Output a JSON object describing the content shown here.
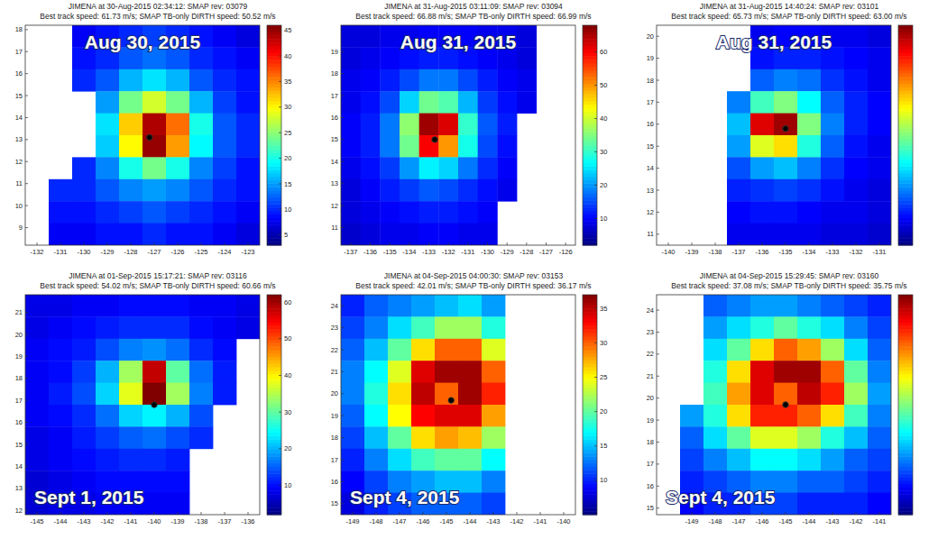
{
  "chart_data": [
    {
      "type": "heatmap",
      "color": "jet",
      "title": "JIMENA at 30-Aug-2015 02:34:12: SMAP rev: 03079",
      "subtitle": "Best track speed: 61.73 m/s; SMAP TB-only DIRTH speed: 50.52 m/s",
      "annotation": "Aug 30, 2015",
      "xlim": [
        -132.5,
        -122.5
      ],
      "xticks": [
        -132,
        -131,
        -130,
        -129,
        -128,
        -127,
        -126,
        -125,
        -124,
        -123
      ],
      "ylim": [
        8.2,
        18.2
      ],
      "yticks": [
        9,
        10,
        11,
        12,
        13,
        14,
        15,
        16,
        17,
        18
      ],
      "x_edges": [
        -132.5,
        -131.5,
        -130.5,
        -129.5,
        -128.5,
        -127.5,
        -126.5,
        -125.5,
        -124.5,
        -123.5,
        -122.5
      ],
      "y_edges": [
        18.2,
        17.2,
        16.2,
        15.2,
        14.2,
        13.2,
        12.2,
        11.2,
        10.2,
        9.2,
        8.2
      ],
      "cells": [
        [
          null,
          null,
          8,
          9,
          10,
          11,
          10,
          9,
          8,
          7
        ],
        [
          null,
          null,
          9,
          10,
          12,
          13,
          12,
          10,
          9,
          8
        ],
        [
          null,
          null,
          10,
          12,
          16,
          18,
          16,
          12,
          10,
          9
        ],
        [
          null,
          null,
          null,
          15,
          24,
          28,
          24,
          16,
          11,
          9
        ],
        [
          null,
          null,
          null,
          18,
          32,
          44,
          36,
          20,
          12,
          10
        ],
        [
          null,
          null,
          null,
          17,
          30,
          45,
          34,
          19,
          12,
          10
        ],
        [
          null,
          null,
          10,
          14,
          20,
          24,
          20,
          14,
          11,
          9
        ],
        [
          null,
          10,
          10,
          12,
          14,
          15,
          14,
          12,
          10,
          9
        ],
        [
          null,
          9,
          9,
          10,
          11,
          12,
          11,
          10,
          9,
          8
        ],
        [
          null,
          8,
          8,
          9,
          9,
          10,
          9,
          9,
          8,
          7
        ]
      ],
      "colorbar_range": [
        3,
        46
      ],
      "colorbar_ticks": [
        5,
        10,
        15,
        20,
        25,
        30,
        35,
        40,
        45
      ],
      "track_x": -127.2,
      "track_y": 13.1
    },
    {
      "type": "heatmap",
      "color": "jet",
      "title": "JIMENA at 31-Aug-2015 03:11:09: SMAP rev: 03094",
      "subtitle": "Best track speed: 66.88 m/s; SMAP TB-only DIRTH speed: 66.99 m/s",
      "annotation": "Aug 31, 2015",
      "xlim": [
        -137.5,
        -125.5
      ],
      "xticks": [
        -137,
        -136,
        -135,
        -134,
        -133,
        -132,
        -131,
        -130,
        -129,
        -128,
        -127,
        -126
      ],
      "ylim": [
        10.2,
        20.2
      ],
      "yticks": [
        11,
        12,
        13,
        14,
        15,
        16,
        17,
        18,
        19
      ],
      "x_edges": [
        -137.5,
        -136.5,
        -135.5,
        -134.5,
        -133.5,
        -132.5,
        -131.5,
        -130.5,
        -129.5,
        -128.5,
        -127.5,
        -126.5,
        -125.5
      ],
      "y_edges": [
        20.2,
        19.2,
        18.2,
        17.2,
        16.2,
        15.2,
        14.2,
        13.2,
        12.2,
        11.2,
        10.2
      ],
      "cells": [
        [
          8,
          8,
          9,
          9,
          10,
          10,
          10,
          9,
          9,
          8,
          null,
          null
        ],
        [
          8,
          9,
          10,
          11,
          12,
          12,
          11,
          10,
          9,
          8,
          null,
          null
        ],
        [
          9,
          10,
          12,
          15,
          18,
          18,
          15,
          12,
          10,
          9,
          null,
          null
        ],
        [
          9,
          11,
          15,
          24,
          34,
          32,
          22,
          14,
          11,
          9,
          null,
          null
        ],
        [
          10,
          12,
          18,
          36,
          66,
          62,
          30,
          16,
          12,
          null,
          null,
          null
        ],
        [
          10,
          12,
          18,
          34,
          60,
          50,
          28,
          15,
          11,
          null,
          null,
          null
        ],
        [
          9,
          11,
          14,
          20,
          26,
          24,
          18,
          13,
          10,
          null,
          null,
          null
        ],
        [
          8,
          10,
          12,
          14,
          16,
          15,
          13,
          11,
          9,
          null,
          null,
          null
        ],
        [
          8,
          9,
          10,
          11,
          12,
          12,
          11,
          10,
          null,
          null,
          null,
          null
        ],
        [
          7,
          8,
          9,
          9,
          10,
          10,
          9,
          9,
          null,
          null,
          null,
          null
        ]
      ],
      "colorbar_range": [
        2,
        68
      ],
      "colorbar_ticks": [
        10,
        20,
        30,
        40,
        50,
        60
      ],
      "track_x": -132.7,
      "track_y": 15.0
    },
    {
      "type": "heatmap",
      "color": "jet",
      "title": "JIMENA at 31-Aug-2015 14:40:24: SMAP rev: 03101",
      "subtitle": "Best track speed: 65.73 m/s; SMAP TB-only DIRTH speed: 63.00 m/s",
      "annotation": "Aug 31, 2015",
      "xlim": [
        -140.5,
        -130.5
      ],
      "xticks": [
        -140,
        -139,
        -138,
        -137,
        -136,
        -135,
        -134,
        -133,
        -132,
        -131
      ],
      "ylim": [
        10.5,
        20.5
      ],
      "yticks": [
        11,
        12,
        13,
        14,
        15,
        16,
        17,
        18,
        19,
        20
      ],
      "x_edges": [
        -140.5,
        -139.5,
        -138.5,
        -137.5,
        -136.5,
        -135.5,
        -134.5,
        -133.5,
        -132.5,
        -131.5,
        -130.5
      ],
      "y_edges": [
        20.5,
        19.5,
        18.5,
        17.5,
        16.5,
        15.5,
        14.5,
        13.5,
        12.5,
        11.5,
        10.5
      ],
      "cells": [
        [
          null,
          null,
          null,
          null,
          9,
          10,
          10,
          9,
          9,
          8
        ],
        [
          null,
          null,
          null,
          null,
          11,
          12,
          12,
          11,
          10,
          9
        ],
        [
          null,
          null,
          null,
          null,
          16,
          18,
          17,
          13,
          11,
          9
        ],
        [
          null,
          null,
          null,
          18,
          30,
          34,
          26,
          16,
          12,
          10
        ],
        [
          null,
          null,
          null,
          22,
          60,
          64,
          34,
          18,
          12,
          10
        ],
        [
          null,
          null,
          null,
          20,
          40,
          44,
          28,
          16,
          11,
          9
        ],
        [
          null,
          null,
          null,
          15,
          20,
          22,
          18,
          13,
          10,
          9
        ],
        [
          null,
          null,
          null,
          12,
          13,
          14,
          13,
          11,
          9,
          8
        ],
        [
          null,
          null,
          null,
          10,
          11,
          11,
          10,
          9,
          9,
          8
        ],
        [
          null,
          null,
          null,
          9,
          9,
          9,
          9,
          8,
          8,
          7
        ]
      ],
      "colorbar_range": [
        2,
        66
      ],
      "track_x": -135.0,
      "track_y": 15.8
    },
    {
      "type": "heatmap",
      "color": "jet",
      "title": "JIMENA at 01-Sep-2015 15:17:21: SMAP rev: 03116",
      "subtitle": "Best track speed: 54.02 m/s; SMAP TB-only DIRTH speed: 60.66 m/s",
      "annotation": "Sept 1, 2015",
      "xlim": [
        -145.5,
        -135.5
      ],
      "xticks": [
        -145,
        -144,
        -143,
        -142,
        -141,
        -140,
        -139,
        -138,
        -137,
        -136
      ],
      "ylim": [
        11.8,
        21.8
      ],
      "yticks": [
        12,
        13,
        14,
        15,
        16,
        17,
        18,
        19,
        20,
        21
      ],
      "x_edges": [
        -145.5,
        -144.5,
        -143.5,
        -142.5,
        -141.5,
        -140.5,
        -139.5,
        -138.5,
        -137.5,
        -136.5,
        -135.5
      ],
      "y_edges": [
        21.8,
        20.8,
        19.8,
        18.8,
        17.8,
        16.8,
        15.8,
        14.8,
        13.8,
        12.8,
        11.8
      ],
      "cells": [
        [
          8,
          8,
          9,
          9,
          10,
          10,
          10,
          9,
          9,
          8
        ],
        [
          8,
          9,
          10,
          11,
          12,
          12,
          12,
          10,
          9,
          8
        ],
        [
          9,
          10,
          11,
          14,
          17,
          18,
          16,
          12,
          10,
          null
        ],
        [
          9,
          10,
          13,
          20,
          34,
          58,
          30,
          16,
          11,
          null
        ],
        [
          9,
          11,
          14,
          22,
          38,
          62,
          34,
          17,
          11,
          null
        ],
        [
          9,
          10,
          12,
          16,
          22,
          24,
          20,
          14,
          null,
          null
        ],
        [
          8,
          9,
          11,
          13,
          15,
          16,
          14,
          12,
          null,
          null
        ],
        [
          8,
          9,
          10,
          11,
          12,
          12,
          11,
          null,
          null,
          null
        ],
        [
          7,
          8,
          9,
          10,
          10,
          10,
          10,
          null,
          null,
          null
        ],
        [
          7,
          8,
          8,
          9,
          9,
          9,
          9,
          null,
          null,
          null
        ]
      ],
      "colorbar_range": [
        2,
        62
      ],
      "colorbar_ticks": [
        10,
        20,
        30,
        40,
        50,
        60
      ],
      "track_x": -140.0,
      "track_y": 16.8
    },
    {
      "type": "heatmap",
      "color": "jet",
      "title": "JIMENA at 04-Sep-2015 04:00:30: SMAP rev: 03153",
      "subtitle": "Best track speed: 42.01 m/s; SMAP TB-only DIRTH speed: 36.17 m/s",
      "annotation": "Sept 4, 2015",
      "xlim": [
        -149.5,
        -139.5
      ],
      "xticks": [
        -149,
        -148,
        -147,
        -146,
        -145,
        -144,
        -143,
        -142,
        -141,
        -140
      ],
      "ylim": [
        14.5,
        24.5
      ],
      "yticks": [
        15,
        16,
        17,
        18,
        19,
        20,
        21,
        22,
        23,
        24
      ],
      "x_edges": [
        -149.5,
        -148.5,
        -147.5,
        -146.5,
        -145.5,
        -144.5,
        -143.5,
        -142.5,
        -141.5,
        -140.5,
        -139.5
      ],
      "y_edges": [
        24.5,
        23.5,
        22.5,
        21.5,
        20.5,
        19.5,
        18.5,
        17.5,
        16.5,
        15.5,
        14.5
      ],
      "cells": [
        [
          10,
          12,
          13,
          14,
          15,
          16,
          14,
          null,
          null,
          null
        ],
        [
          11,
          13,
          16,
          19,
          22,
          22,
          18,
          null,
          null,
          null
        ],
        [
          12,
          15,
          20,
          26,
          30,
          30,
          24,
          null,
          null,
          null
        ],
        [
          13,
          17,
          24,
          34,
          36,
          36,
          30,
          null,
          null,
          null
        ],
        [
          13,
          18,
          26,
          35,
          30,
          36,
          32,
          null,
          null,
          null
        ],
        [
          12,
          17,
          25,
          33,
          34,
          34,
          28,
          null,
          null,
          null
        ],
        [
          11,
          15,
          20,
          26,
          28,
          27,
          22,
          null,
          null,
          null
        ],
        [
          10,
          13,
          16,
          19,
          20,
          20,
          17,
          null,
          null,
          null
        ],
        [
          9,
          11,
          13,
          14,
          15,
          15,
          13,
          null,
          null,
          null
        ],
        [
          8,
          10,
          11,
          12,
          12,
          12,
          11,
          null,
          null,
          null
        ]
      ],
      "colorbar_range": [
        5,
        37
      ],
      "colorbar_ticks": [
        10,
        15,
        20,
        25,
        30,
        35
      ],
      "track_x": -144.8,
      "track_y": 19.7
    },
    {
      "type": "heatmap",
      "color": "jet",
      "title": "JIMENA at 04-Sep-2015 15:29:45: SMAP rev: 03160",
      "subtitle": "Best track speed: 37.08 m/s; SMAP TB-only DIRTH speed: 35.75 m/s",
      "annotation": "Sept 4, 2015",
      "xlim": [
        -150.5,
        -140.5
      ],
      "xticks": [
        -149,
        -148,
        -147,
        -146,
        -145,
        -144,
        -143,
        -142,
        -141
      ],
      "ylim": [
        14.7,
        24.7
      ],
      "yticks": [
        15,
        16,
        17,
        18,
        19,
        20,
        21,
        22,
        23,
        24
      ],
      "x_edges": [
        -150.5,
        -149.5,
        -148.5,
        -147.5,
        -146.5,
        -145.5,
        -144.5,
        -143.5,
        -142.5,
        -141.5,
        -140.5
      ],
      "y_edges": [
        24.7,
        23.7,
        22.7,
        21.7,
        20.7,
        19.7,
        18.7,
        17.7,
        16.7,
        15.7,
        14.7
      ],
      "cells": [
        [
          null,
          null,
          12,
          13,
          14,
          14,
          13,
          12,
          11,
          10
        ],
        [
          null,
          null,
          14,
          16,
          18,
          20,
          18,
          16,
          13,
          11
        ],
        [
          null,
          null,
          16,
          20,
          26,
          30,
          28,
          22,
          16,
          12
        ],
        [
          null,
          null,
          18,
          26,
          34,
          36,
          36,
          30,
          20,
          13
        ],
        [
          null,
          null,
          19,
          28,
          34,
          30,
          35,
          32,
          22,
          14
        ],
        [
          null,
          14,
          18,
          26,
          32,
          32,
          30,
          26,
          19,
          13
        ],
        [
          null,
          12,
          16,
          20,
          24,
          24,
          22,
          18,
          15,
          12
        ],
        [
          null,
          11,
          13,
          15,
          17,
          17,
          16,
          14,
          12,
          11
        ],
        [
          null,
          10,
          11,
          12,
          13,
          13,
          12,
          12,
          11,
          10
        ],
        [
          null,
          9,
          10,
          10,
          11,
          11,
          10,
          10,
          10,
          9
        ]
      ],
      "colorbar_range": [
        5,
        37
      ],
      "track_x": -145.0,
      "track_y": 19.7
    }
  ]
}
